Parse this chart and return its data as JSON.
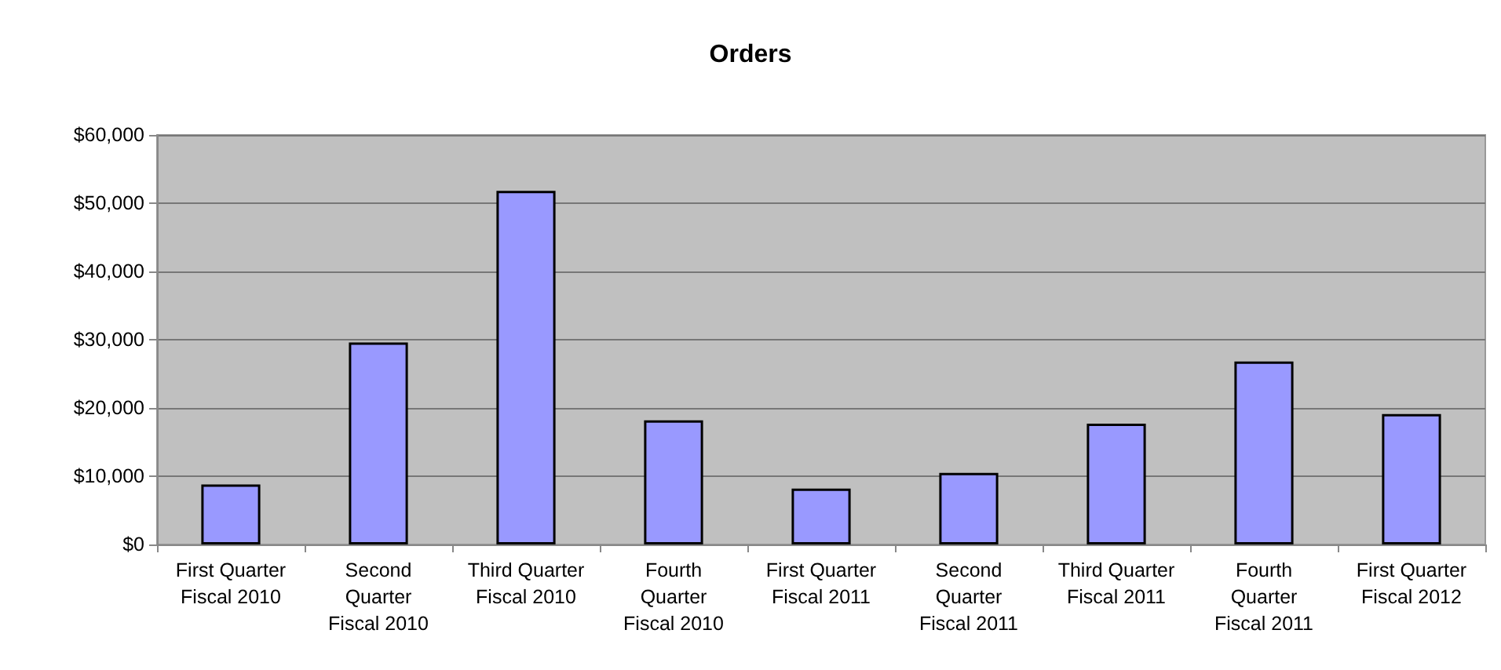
{
  "chart_data": {
    "type": "bar",
    "title": "Orders",
    "categories": [
      "First Quarter\nFiscal 2010",
      "Second\nQuarter\nFiscal 2010",
      "Third Quarter\nFiscal 2010",
      "Fourth\nQuarter\nFiscal 2010",
      "First Quarter\nFiscal 2011",
      "Second\nQuarter\nFiscal 2011",
      "Third Quarter\nFiscal 2011",
      "Fourth\nQuarter\nFiscal 2011",
      "First Quarter\nFiscal 2012"
    ],
    "values": [
      8800,
      29600,
      51800,
      18200,
      8200,
      10500,
      17700,
      26800,
      19100
    ],
    "color": "#9999ff",
    "ylim": [
      0,
      60000
    ],
    "yticks": [
      {
        "value": 0,
        "label": "$0"
      },
      {
        "value": 10000,
        "label": "$10,000"
      },
      {
        "value": 20000,
        "label": "$20,000"
      },
      {
        "value": 30000,
        "label": "$30,000"
      },
      {
        "value": 40000,
        "label": "$40,000"
      },
      {
        "value": 50000,
        "label": "$50,000"
      },
      {
        "value": 60000,
        "label": "$60,000"
      }
    ],
    "grid": "y"
  }
}
